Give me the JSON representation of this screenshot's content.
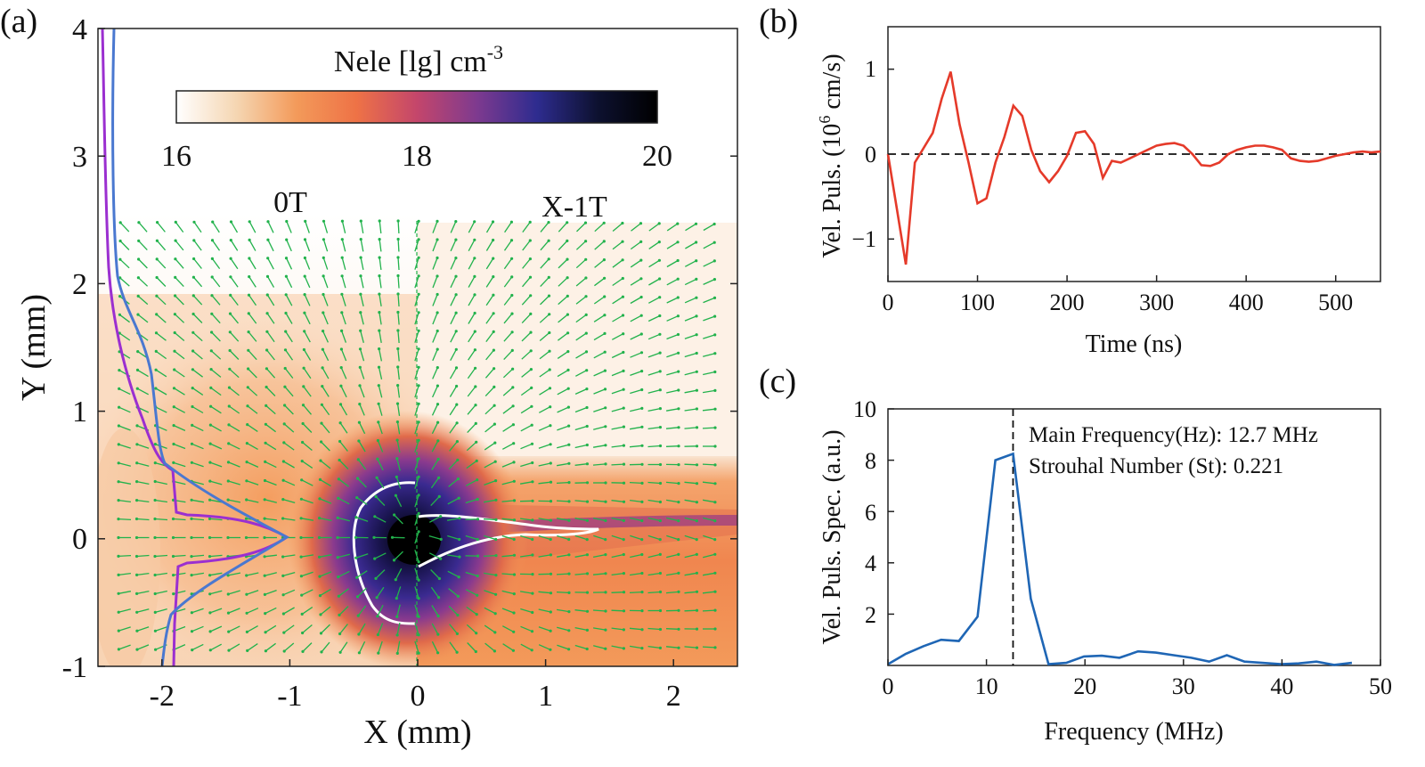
{
  "panel_a": {
    "label": "(a)",
    "xlabel": "X (mm)",
    "ylabel": "Y (mm)",
    "colorbar": {
      "title": "Nele [lg] cm",
      "title_sup": "-3",
      "ticks": [
        "16",
        "18",
        "20"
      ],
      "range": [
        16,
        20
      ],
      "colors": [
        "#ffffff",
        "#f5d6b2",
        "#f39a5a",
        "#ee7246",
        "#c4466b",
        "#7e3a8f",
        "#2e2c8f",
        "#0d1130",
        "#000000"
      ]
    },
    "region_labels": [
      "0T",
      "X-1T"
    ],
    "xticks": [
      "-2",
      "-1",
      "0",
      "1",
      "2"
    ],
    "yticks": [
      "-1",
      "0",
      "1",
      "2",
      "3",
      "4"
    ],
    "profile_colors": {
      "purple": "#9b2fd0",
      "blue": "#4a78d0"
    },
    "arrow_color": "#22b24c"
  },
  "panel_b": {
    "label": "(b)",
    "xlabel": "Time (ns)",
    "ylabel_prefix": "Vel. Puls. (10",
    "ylabel_sup": "6",
    "ylabel_suffix": " cm/s)",
    "xticks": [
      "0",
      "100",
      "200",
      "300",
      "400",
      "500"
    ],
    "yticks": [
      "1",
      "0",
      "−1"
    ],
    "line_color": "#e53a2a"
  },
  "panel_c": {
    "label": "(c)",
    "xlabel": "Frequency (MHz)",
    "ylabel": "Vel. Puls. Spec. (a.u.)",
    "xticks": [
      "0",
      "10",
      "20",
      "30",
      "40",
      "50"
    ],
    "yticks": [
      "2",
      "4",
      "6",
      "8",
      "10"
    ],
    "annotation1": "Main Frequency(Hz): 12.7 MHz",
    "annotation2": "Strouhal Number (St): 0.221",
    "line_color": "#1f66b5"
  },
  "chart_data": [
    {
      "type": "heatmap",
      "panel": "a",
      "xlabel": "X (mm)",
      "ylabel": "Y (mm)",
      "xlim": [
        -2.5,
        2.5
      ],
      "ylim": [
        -1,
        4
      ],
      "colorbar_label": "Nele [lg] cm-3",
      "colorbar_range": [
        16,
        20
      ],
      "annotations": [
        "0T",
        "X-1T"
      ]
    },
    {
      "type": "line",
      "panel": "b",
      "xlabel": "Time (ns)",
      "ylabel": "Vel. Puls. (10^6 cm/s)",
      "xlim": [
        0,
        550
      ],
      "ylim": [
        -1.5,
        1.5
      ],
      "reference_line_y": 0,
      "x": [
        0,
        10,
        20,
        30,
        50,
        60,
        70,
        80,
        90,
        100,
        110,
        120,
        130,
        140,
        150,
        160,
        170,
        180,
        190,
        200,
        210,
        220,
        230,
        240,
        250,
        260,
        270,
        280,
        290,
        300,
        310,
        320,
        330,
        340,
        350,
        360,
        370,
        380,
        390,
        400,
        410,
        420,
        430,
        440,
        450,
        460,
        470,
        480,
        490,
        500,
        510,
        520,
        530,
        540,
        550
      ],
      "y": [
        0.0,
        -0.65,
        -1.3,
        -0.1,
        0.25,
        0.65,
        0.97,
        0.35,
        -0.1,
        -0.58,
        -0.52,
        -0.1,
        0.2,
        0.57,
        0.45,
        0.05,
        -0.2,
        -0.33,
        -0.2,
        -0.02,
        0.25,
        0.27,
        0.12,
        -0.28,
        -0.08,
        -0.1,
        -0.05,
        0.0,
        0.05,
        0.1,
        0.12,
        0.13,
        0.1,
        0.0,
        -0.13,
        -0.14,
        -0.1,
        0.0,
        0.05,
        0.08,
        0.1,
        0.1,
        0.08,
        0.05,
        -0.05,
        -0.08,
        -0.09,
        -0.08,
        -0.05,
        -0.02,
        0.0,
        0.02,
        0.03,
        0.02,
        0.03
      ]
    },
    {
      "type": "line",
      "panel": "c",
      "xlabel": "Frequency (MHz)",
      "ylabel": "Vel. Puls. Spec. (a.u.)",
      "xlim": [
        0,
        50
      ],
      "ylim": [
        0,
        10
      ],
      "main_frequency_MHz": 12.7,
      "x": [
        0,
        1.8,
        3.6,
        5.4,
        7.2,
        9.1,
        10.9,
        12.7,
        14.5,
        16.3,
        18.1,
        19.9,
        21.7,
        23.5,
        25.4,
        27.2,
        29.0,
        30.8,
        32.6,
        34.4,
        36.2,
        38.0,
        39.9,
        41.7,
        43.5,
        45.3,
        47.1
      ],
      "y": [
        0.05,
        0.45,
        0.75,
        1.0,
        0.95,
        1.9,
        8.0,
        8.25,
        2.6,
        0.05,
        0.1,
        0.35,
        0.38,
        0.3,
        0.55,
        0.5,
        0.4,
        0.3,
        0.15,
        0.4,
        0.15,
        0.1,
        0.05,
        0.08,
        0.15,
        0.02,
        0.1
      ]
    }
  ]
}
